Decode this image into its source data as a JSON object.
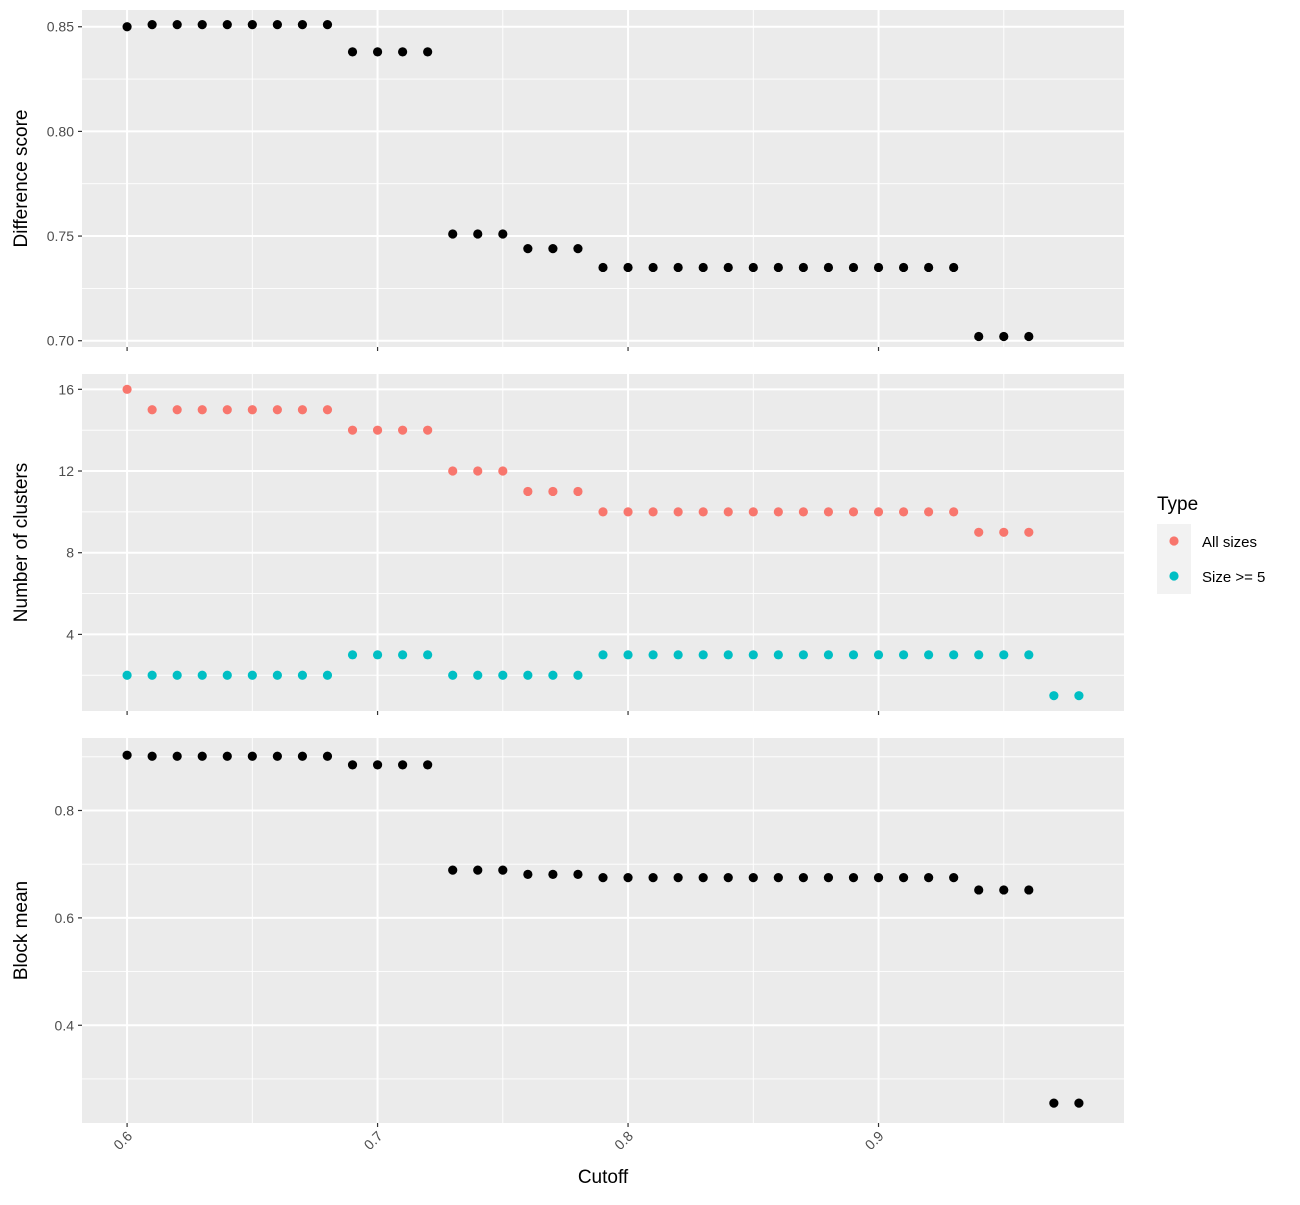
{
  "chart_data": {
    "type": "scatter",
    "x_axis": {
      "label": "Cutoff",
      "range": [
        0.582,
        0.998
      ],
      "breaks": [
        0.6,
        0.7,
        0.8,
        0.9
      ],
      "tick_labels": [
        "0.6",
        "0.7",
        "0.8",
        "0.9"
      ],
      "tick_label_rotation_deg": -45
    },
    "legend": {
      "title": "Type",
      "placement": "right",
      "entries": [
        {
          "label": "All sizes",
          "color": "#F8766D"
        },
        {
          "label": "Size >= 5",
          "color": "#00BFC4"
        }
      ]
    },
    "style": {
      "panel_background": "#EBEBEB",
      "grid_color": "#FFFFFF",
      "grid": true,
      "point_color_default": "#000000"
    },
    "panels": [
      {
        "id": "difference-score",
        "ylabel": "Difference score",
        "ylim": [
          0.697,
          0.858
        ],
        "y_breaks": [
          0.7,
          0.75,
          0.8,
          0.85
        ],
        "y_tick_labels": [
          "0.70",
          "0.75",
          "0.80",
          "0.85"
        ],
        "y_minor": [
          0.725,
          0.775,
          0.825
        ],
        "series": [
          {
            "name": "",
            "color": "#000000",
            "points": [
              [
                0.6,
                0.85
              ],
              [
                0.61,
                0.851
              ],
              [
                0.62,
                0.851
              ],
              [
                0.63,
                0.851
              ],
              [
                0.64,
                0.851
              ],
              [
                0.65,
                0.851
              ],
              [
                0.66,
                0.851
              ],
              [
                0.67,
                0.851
              ],
              [
                0.68,
                0.851
              ],
              [
                0.69,
                0.838
              ],
              [
                0.7,
                0.838
              ],
              [
                0.71,
                0.838
              ],
              [
                0.72,
                0.838
              ],
              [
                0.73,
                0.751
              ],
              [
                0.74,
                0.751
              ],
              [
                0.75,
                0.751
              ],
              [
                0.76,
                0.744
              ],
              [
                0.77,
                0.744
              ],
              [
                0.78,
                0.744
              ],
              [
                0.79,
                0.735
              ],
              [
                0.8,
                0.735
              ],
              [
                0.81,
                0.735
              ],
              [
                0.82,
                0.735
              ],
              [
                0.83,
                0.735
              ],
              [
                0.84,
                0.735
              ],
              [
                0.85,
                0.735
              ],
              [
                0.86,
                0.735
              ],
              [
                0.87,
                0.735
              ],
              [
                0.88,
                0.735
              ],
              [
                0.89,
                0.735
              ],
              [
                0.9,
                0.735
              ],
              [
                0.91,
                0.735
              ],
              [
                0.92,
                0.735
              ],
              [
                0.93,
                0.735
              ],
              [
                0.94,
                0.702
              ],
              [
                0.95,
                0.702
              ],
              [
                0.96,
                0.702
              ]
            ]
          }
        ]
      },
      {
        "id": "number-of-clusters",
        "ylabel": "Number of clusters",
        "ylim": [
          0.25,
          16.75
        ],
        "y_breaks": [
          4,
          8,
          12,
          16
        ],
        "y_tick_labels": [
          "4",
          "8",
          "12",
          "16"
        ],
        "y_minor": [
          2,
          6,
          10,
          14
        ],
        "series": [
          {
            "name": "All sizes",
            "color": "#F8766D",
            "points": [
              [
                0.6,
                16
              ],
              [
                0.61,
                15
              ],
              [
                0.62,
                15
              ],
              [
                0.63,
                15
              ],
              [
                0.64,
                15
              ],
              [
                0.65,
                15
              ],
              [
                0.66,
                15
              ],
              [
                0.67,
                15
              ],
              [
                0.68,
                15
              ],
              [
                0.69,
                14
              ],
              [
                0.7,
                14
              ],
              [
                0.71,
                14
              ],
              [
                0.72,
                14
              ],
              [
                0.73,
                12
              ],
              [
                0.74,
                12
              ],
              [
                0.75,
                12
              ],
              [
                0.76,
                11
              ],
              [
                0.77,
                11
              ],
              [
                0.78,
                11
              ],
              [
                0.79,
                10
              ],
              [
                0.8,
                10
              ],
              [
                0.81,
                10
              ],
              [
                0.82,
                10
              ],
              [
                0.83,
                10
              ],
              [
                0.84,
                10
              ],
              [
                0.85,
                10
              ],
              [
                0.86,
                10
              ],
              [
                0.87,
                10
              ],
              [
                0.88,
                10
              ],
              [
                0.89,
                10
              ],
              [
                0.9,
                10
              ],
              [
                0.91,
                10
              ],
              [
                0.92,
                10
              ],
              [
                0.93,
                10
              ],
              [
                0.94,
                9
              ],
              [
                0.95,
                9
              ],
              [
                0.96,
                9
              ]
            ]
          },
          {
            "name": "Size >= 5",
            "color": "#00BFC4",
            "points": [
              [
                0.6,
                2
              ],
              [
                0.61,
                2
              ],
              [
                0.62,
                2
              ],
              [
                0.63,
                2
              ],
              [
                0.64,
                2
              ],
              [
                0.65,
                2
              ],
              [
                0.66,
                2
              ],
              [
                0.67,
                2
              ],
              [
                0.68,
                2
              ],
              [
                0.69,
                3
              ],
              [
                0.7,
                3
              ],
              [
                0.71,
                3
              ],
              [
                0.72,
                3
              ],
              [
                0.73,
                2
              ],
              [
                0.74,
                2
              ],
              [
                0.75,
                2
              ],
              [
                0.76,
                2
              ],
              [
                0.77,
                2
              ],
              [
                0.78,
                2
              ],
              [
                0.79,
                3
              ],
              [
                0.8,
                3
              ],
              [
                0.81,
                3
              ],
              [
                0.82,
                3
              ],
              [
                0.83,
                3
              ],
              [
                0.84,
                3
              ],
              [
                0.85,
                3
              ],
              [
                0.86,
                3
              ],
              [
                0.87,
                3
              ],
              [
                0.88,
                3
              ],
              [
                0.89,
                3
              ],
              [
                0.9,
                3
              ],
              [
                0.91,
                3
              ],
              [
                0.92,
                3
              ],
              [
                0.93,
                3
              ],
              [
                0.94,
                3
              ],
              [
                0.95,
                3
              ],
              [
                0.96,
                3
              ],
              [
                0.97,
                1
              ],
              [
                0.98,
                1
              ]
            ]
          }
        ]
      },
      {
        "id": "block-mean",
        "ylabel": "Block mean",
        "ylim": [
          0.218,
          0.935
        ],
        "y_breaks": [
          0.4,
          0.6,
          0.8
        ],
        "y_tick_labels": [
          "0.4",
          "0.6",
          "0.8"
        ],
        "y_minor": [
          0.3,
          0.5,
          0.7,
          0.9
        ],
        "series": [
          {
            "name": "",
            "color": "#000000",
            "points": [
              [
                0.6,
                0.903
              ],
              [
                0.61,
                0.901
              ],
              [
                0.62,
                0.901
              ],
              [
                0.63,
                0.901
              ],
              [
                0.64,
                0.901
              ],
              [
                0.65,
                0.901
              ],
              [
                0.66,
                0.901
              ],
              [
                0.67,
                0.901
              ],
              [
                0.68,
                0.901
              ],
              [
                0.69,
                0.885
              ],
              [
                0.7,
                0.885
              ],
              [
                0.71,
                0.885
              ],
              [
                0.72,
                0.885
              ],
              [
                0.73,
                0.689
              ],
              [
                0.74,
                0.689
              ],
              [
                0.75,
                0.689
              ],
              [
                0.76,
                0.681
              ],
              [
                0.77,
                0.681
              ],
              [
                0.78,
                0.681
              ],
              [
                0.79,
                0.675
              ],
              [
                0.8,
                0.675
              ],
              [
                0.81,
                0.675
              ],
              [
                0.82,
                0.675
              ],
              [
                0.83,
                0.675
              ],
              [
                0.84,
                0.675
              ],
              [
                0.85,
                0.675
              ],
              [
                0.86,
                0.675
              ],
              [
                0.87,
                0.675
              ],
              [
                0.88,
                0.675
              ],
              [
                0.89,
                0.675
              ],
              [
                0.9,
                0.675
              ],
              [
                0.91,
                0.675
              ],
              [
                0.92,
                0.675
              ],
              [
                0.93,
                0.675
              ],
              [
                0.94,
                0.652
              ],
              [
                0.95,
                0.652
              ],
              [
                0.96,
                0.652
              ],
              [
                0.97,
                0.255
              ],
              [
                0.98,
                0.255
              ]
            ]
          }
        ]
      }
    ]
  }
}
